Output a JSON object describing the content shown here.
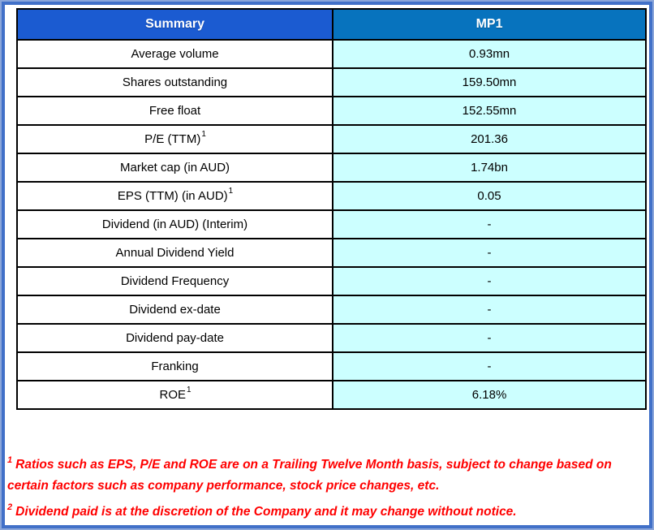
{
  "table": {
    "header": {
      "summary": "Summary",
      "ticker": "MP1"
    },
    "rows": [
      {
        "label": "Average volume",
        "sup": "",
        "value": "0.93mn"
      },
      {
        "label": "Shares outstanding",
        "sup": "",
        "value": "159.50mn"
      },
      {
        "label": "Free float",
        "sup": "",
        "value": "152.55mn"
      },
      {
        "label": "P/E (TTM)",
        "sup": "1",
        "value": "201.36"
      },
      {
        "label": "Market cap (in AUD)",
        "sup": "",
        "value": "1.74bn"
      },
      {
        "label": "EPS (TTM) (in AUD)",
        "sup": "1",
        "value": "0.05"
      },
      {
        "label": "Dividend (in AUD) (Interim)",
        "sup": "",
        "value": "-"
      },
      {
        "label": "Annual Dividend Yield",
        "sup": "",
        "value": "-"
      },
      {
        "label": "Dividend Frequency",
        "sup": "",
        "value": "-"
      },
      {
        "label": "Dividend ex-date",
        "sup": "",
        "value": "-"
      },
      {
        "label": "Dividend pay-date",
        "sup": "",
        "value": "-"
      },
      {
        "label": "Franking",
        "sup": "",
        "value": "-"
      },
      {
        "label": "ROE",
        "sup": "1",
        "value": "6.18%"
      }
    ]
  },
  "footnotes": [
    {
      "sup": "1",
      "text": "Ratios such as EPS, P/E and ROE are on a Trailing Twelve Month basis, subject to change based on certain factors such as company performance, stock price changes, etc."
    },
    {
      "sup": "2",
      "text": "Dividend paid is at the discretion of the Company and it may change without notice."
    }
  ],
  "colors": {
    "header_summary_bg": "#1B5BD1",
    "header_ticker_bg": "#0773BE",
    "value_cell_bg": "#CCFFFF",
    "label_cell_bg": "#FFFFFF",
    "table_border": "#000000",
    "frame_blue": "#4170C8",
    "frame_light_blue": "#8BA6DA",
    "footnote_red": "#FF0000",
    "header_text": "#FFFFFF",
    "cell_text": "#000000"
  }
}
